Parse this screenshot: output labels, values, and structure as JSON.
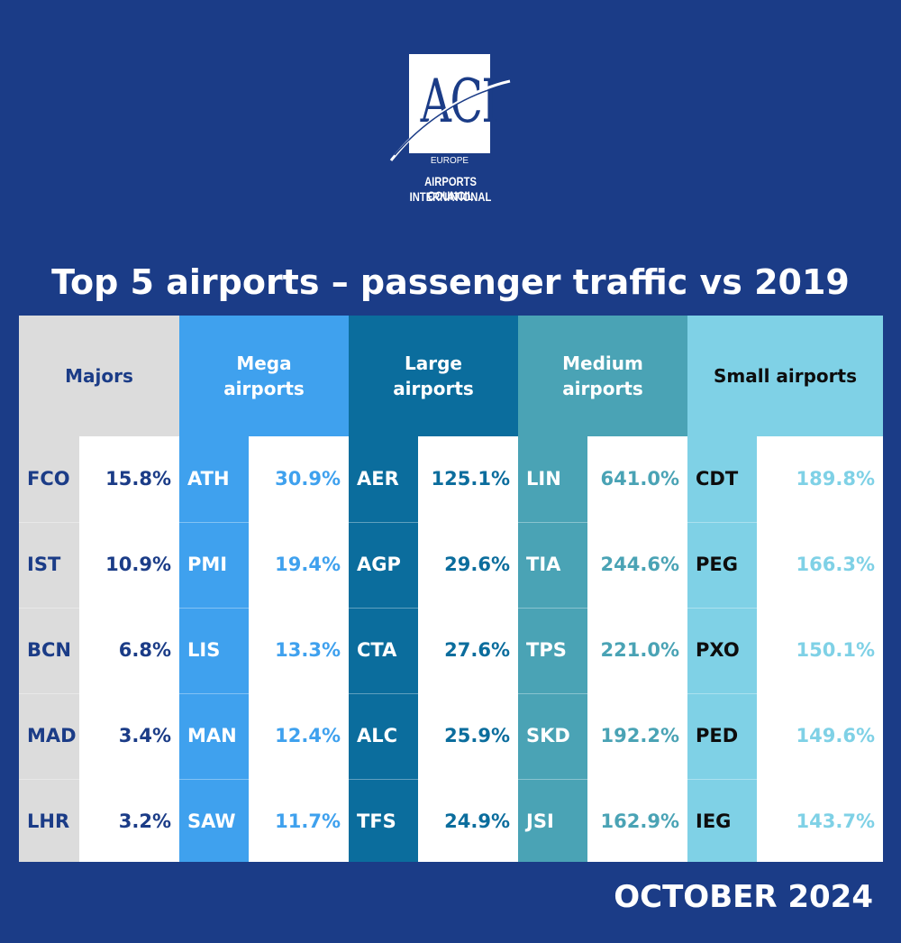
{
  "logo": {
    "mark": "ACI",
    "region": "EUROPE",
    "line1": "AIRPORTS COUNCIL",
    "line2": "INTERNATIONAL"
  },
  "chart_data": {
    "type": "table",
    "title": "Top 5 airports – passenger traffic vs 2019",
    "groups": [
      {
        "name": "Majors",
        "header_bg": "#dcdcdc",
        "code_bg": "#dcdcdc",
        "header_color": "#1b3c87",
        "code_color": "#1b3c87",
        "value_color": "#1b3c87",
        "rows": [
          {
            "code": "FCO",
            "value": "15.8%"
          },
          {
            "code": "IST",
            "value": "10.9%"
          },
          {
            "code": "BCN",
            "value": "6.8%"
          },
          {
            "code": "MAD",
            "value": "3.4%"
          },
          {
            "code": "LHR",
            "value": "3.2%"
          }
        ]
      },
      {
        "name": "Mega\nairports",
        "header_bg": "#3fa1ee",
        "code_bg": "#3fa1ee",
        "header_color": "#ffffff",
        "code_color": "#ffffff",
        "value_color": "#3fa1ee",
        "rows": [
          {
            "code": "ATH",
            "value": "30.9%"
          },
          {
            "code": "PMI",
            "value": "19.4%"
          },
          {
            "code": "LIS",
            "value": "13.3%"
          },
          {
            "code": "MAN",
            "value": "12.4%"
          },
          {
            "code": "SAW",
            "value": "11.7%"
          }
        ]
      },
      {
        "name": "Large\nairports",
        "header_bg": "#0b6d9d",
        "code_bg": "#0b6d9d",
        "header_color": "#ffffff",
        "code_color": "#ffffff",
        "value_color": "#0b6d9d",
        "rows": [
          {
            "code": "AER",
            "value": "125.1%"
          },
          {
            "code": "AGP",
            "value": "29.6%"
          },
          {
            "code": "CTA",
            "value": "27.6%"
          },
          {
            "code": "ALC",
            "value": "25.9%"
          },
          {
            "code": "TFS",
            "value": "24.9%"
          }
        ]
      },
      {
        "name": "Medium\nairports",
        "header_bg": "#4aa3b5",
        "code_bg": "#4aa3b5",
        "header_color": "#ffffff",
        "code_color": "#ffffff",
        "value_color": "#4aa3b5",
        "rows": [
          {
            "code": "LIN",
            "value": "641.0%"
          },
          {
            "code": "TIA",
            "value": "244.6%"
          },
          {
            "code": "TPS",
            "value": "221.0%"
          },
          {
            "code": "SKD",
            "value": "192.2%"
          },
          {
            "code": "JSI",
            "value": "162.9%"
          }
        ]
      },
      {
        "name": "Small airports",
        "header_bg": "#7fd1e6",
        "code_bg": "#7fd1e6",
        "header_color": "#0d0d0d",
        "code_color": "#0d0d0d",
        "value_color": "#7fd1e6",
        "rows": [
          {
            "code": "CDT",
            "value": "189.8%"
          },
          {
            "code": "PEG",
            "value": "166.3%"
          },
          {
            "code": "PXO",
            "value": "150.1%"
          },
          {
            "code": "PED",
            "value": "149.6%"
          },
          {
            "code": "IEG",
            "value": "143.7%"
          }
        ]
      }
    ]
  },
  "footer": {
    "date": "OCTOBER 2024"
  }
}
